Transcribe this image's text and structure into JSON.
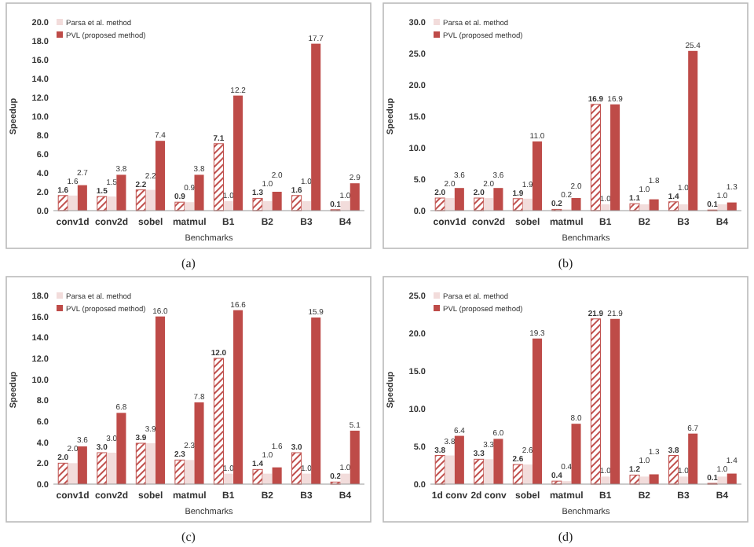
{
  "chart_data": [
    {
      "type": "bar",
      "xlabel": "Benchmarks",
      "ylabel": "Speedup",
      "categories": [
        "conv1d",
        "conv2d",
        "sobel",
        "matmul",
        "B1",
        "B2",
        "B3",
        "B4"
      ],
      "ylim": [
        0,
        20
      ],
      "yticks": [
        {
          "value": 0,
          "label": "0.0"
        },
        {
          "value": 2,
          "label": "2.0"
        },
        {
          "value": 4,
          "label": "4.0"
        },
        {
          "value": 6,
          "label": "6.0"
        },
        {
          "value": 8,
          "label": "8.0"
        },
        {
          "value": 10,
          "label": "10.0"
        },
        {
          "value": 12,
          "label": "12.0"
        },
        {
          "value": 14,
          "label": "14.0"
        },
        {
          "value": 16,
          "label": "16.0"
        },
        {
          "value": 18,
          "label": "18.0"
        },
        {
          "value": 20,
          "label": "20.0"
        }
      ],
      "legend": "top left",
      "annotations": [
        "(a)"
      ],
      "series": [
        {
          "color": "#c0504d",
          "values": [
            1.6,
            1.5,
            2.2,
            0.9,
            7.1,
            1.3,
            1.6,
            0.1
          ],
          "value_labels": [
            "1.6",
            "1.5",
            "2.2",
            "0.9",
            "7.1",
            "1.3",
            "1.6",
            "0.1"
          ]
        },
        {
          "name": "Parsa et  al. method",
          "color": "#f2dcdb",
          "values": [
            1.6,
            1.5,
            2.2,
            0.9,
            1.0,
            1.0,
            1.0,
            1.0
          ],
          "value_labels": [
            "1.6",
            "1.5",
            "2.2",
            "0.9",
            "1.0",
            "1.0",
            "1.0",
            "1.0"
          ]
        },
        {
          "name": "PVL (proposed method)",
          "color": "#be4b48",
          "values": [
            2.7,
            3.8,
            7.4,
            3.8,
            12.2,
            2.0,
            17.7,
            2.9
          ],
          "value_labels": [
            "2.7",
            "3.8",
            "7.4",
            "3.8",
            "12.2",
            "2.0",
            "17.7",
            "2.9"
          ]
        }
      ]
    },
    {
      "type": "bar",
      "xlabel": "Benchmarks",
      "ylabel": "Speedup",
      "categories": [
        "conv1d",
        "conv2d",
        "sobel",
        "matmul",
        "B1",
        "B2",
        "B3",
        "B4"
      ],
      "ylim": [
        0,
        30
      ],
      "yticks": [
        {
          "value": 0,
          "label": "0.0"
        },
        {
          "value": 5,
          "label": "5.0"
        },
        {
          "value": 10,
          "label": "10.0"
        },
        {
          "value": 15,
          "label": "15.0"
        },
        {
          "value": 20,
          "label": "20.0"
        },
        {
          "value": 25,
          "label": "25.0"
        },
        {
          "value": 30,
          "label": "30.0"
        }
      ],
      "legend": "top left",
      "annotations": [
        "(b)"
      ],
      "series": [
        {
          "color": "#c0504d",
          "values": [
            2.0,
            2.0,
            1.9,
            0.2,
            16.9,
            1.1,
            1.4,
            0.1
          ],
          "value_labels": [
            "2.0",
            "2.0",
            "1.9",
            "0.2",
            "16.9",
            "1.1",
            "1.4",
            "0.1"
          ]
        },
        {
          "name": "Parsa et  al. method",
          "color": "#f2dcdb",
          "values": [
            2.0,
            2.0,
            1.9,
            0.2,
            1.0,
            1.0,
            1.0,
            1.0
          ],
          "value_labels": [
            "2.0",
            "2.0",
            "1.9",
            "0.2",
            "1.0",
            "1.0",
            "1.0",
            "1.0"
          ]
        },
        {
          "name": "PVL (proposed method)",
          "color": "#be4b48",
          "values": [
            3.6,
            3.6,
            11.0,
            2.0,
            16.9,
            1.8,
            25.4,
            1.3
          ],
          "value_labels": [
            "3.6",
            "3.6",
            "11.0",
            "2.0",
            "16.9",
            "1.8",
            "25.4",
            "1.3"
          ]
        }
      ]
    },
    {
      "type": "bar",
      "xlabel": "Benchmarks",
      "ylabel": "Speedup",
      "categories": [
        "conv1d",
        "conv2d",
        "sobel",
        "matmul",
        "B1",
        "B2",
        "B3",
        "B4"
      ],
      "ylim": [
        0,
        18
      ],
      "yticks": [
        {
          "value": 0,
          "label": "0.0"
        },
        {
          "value": 2,
          "label": "2.0"
        },
        {
          "value": 4,
          "label": "4.0"
        },
        {
          "value": 6,
          "label": "6.0"
        },
        {
          "value": 8,
          "label": "8.0"
        },
        {
          "value": 10,
          "label": "10.0"
        },
        {
          "value": 12,
          "label": "12.0"
        },
        {
          "value": 14,
          "label": "14.0"
        },
        {
          "value": 16,
          "label": "16.0"
        },
        {
          "value": 18,
          "label": "18.0"
        }
      ],
      "legend": "top left",
      "annotations": [
        "(c)"
      ],
      "series": [
        {
          "color": "#c0504d",
          "values": [
            2.0,
            3.0,
            3.9,
            2.3,
            12.0,
            1.4,
            3.0,
            0.2
          ],
          "value_labels": [
            "2.0",
            "3.0",
            "3.9",
            "2.3",
            "12.0",
            "1.4",
            "3.0",
            "0.2"
          ]
        },
        {
          "name": "Parsa et  al. method",
          "color": "#f2dcdb",
          "values": [
            2.0,
            3.0,
            3.9,
            2.3,
            1.0,
            1.0,
            1.0,
            1.0
          ],
          "value_labels": [
            "2.0",
            "3.0",
            "3.9",
            "2.3",
            "1.0",
            "1.0",
            "1.0",
            "1.0"
          ]
        },
        {
          "name": "PVL (proposed method)",
          "color": "#be4b48",
          "values": [
            3.6,
            6.8,
            16.0,
            7.8,
            16.6,
            1.6,
            15.9,
            5.1
          ],
          "value_labels": [
            "3.6",
            "6.8",
            "16.0",
            "7.8",
            "16.6",
            "1.6",
            "15.9",
            "5.1"
          ]
        }
      ]
    },
    {
      "type": "bar",
      "xlabel": "Benchmarks",
      "ylabel": "Speedup",
      "categories": [
        "1d conv",
        "2d conv",
        "sobel",
        "matmul",
        "B1",
        "B2",
        "B3",
        "B4"
      ],
      "ylim": [
        0,
        25
      ],
      "yticks": [
        {
          "value": 0,
          "label": "0.0"
        },
        {
          "value": 5,
          "label": "5.0"
        },
        {
          "value": 10,
          "label": "10.0"
        },
        {
          "value": 15,
          "label": "15.0"
        },
        {
          "value": 20,
          "label": "20.0"
        },
        {
          "value": 25,
          "label": "25.0"
        }
      ],
      "legend": "top left",
      "annotations": [
        "(d)"
      ],
      "series": [
        {
          "color": "#c0504d",
          "values": [
            3.8,
            3.3,
            2.6,
            0.4,
            21.9,
            1.2,
            3.8,
            0.1
          ],
          "value_labels": [
            "3.8",
            "3.3",
            "2.6",
            "0.4",
            "21.9",
            "1.2",
            "3.8",
            "0.1"
          ]
        },
        {
          "name": "Parsa et  al. method",
          "color": "#f2dcdb",
          "values": [
            3.8,
            3.3,
            2.6,
            0.4,
            1.0,
            1.0,
            1.0,
            1.0
          ],
          "value_labels": [
            "3.8",
            "3.3",
            "2.6",
            "0.4",
            "1.0",
            "1.0",
            "1.0",
            "1.0"
          ]
        },
        {
          "name": "PVL (proposed method)",
          "color": "#be4b48",
          "values": [
            6.4,
            6.0,
            19.3,
            8.0,
            21.9,
            1.3,
            6.7,
            1.4
          ],
          "value_labels": [
            "6.4",
            "6.0",
            "19.3",
            "8.0",
            "21.9",
            "1.3",
            "6.7",
            "1.4"
          ]
        }
      ]
    }
  ]
}
